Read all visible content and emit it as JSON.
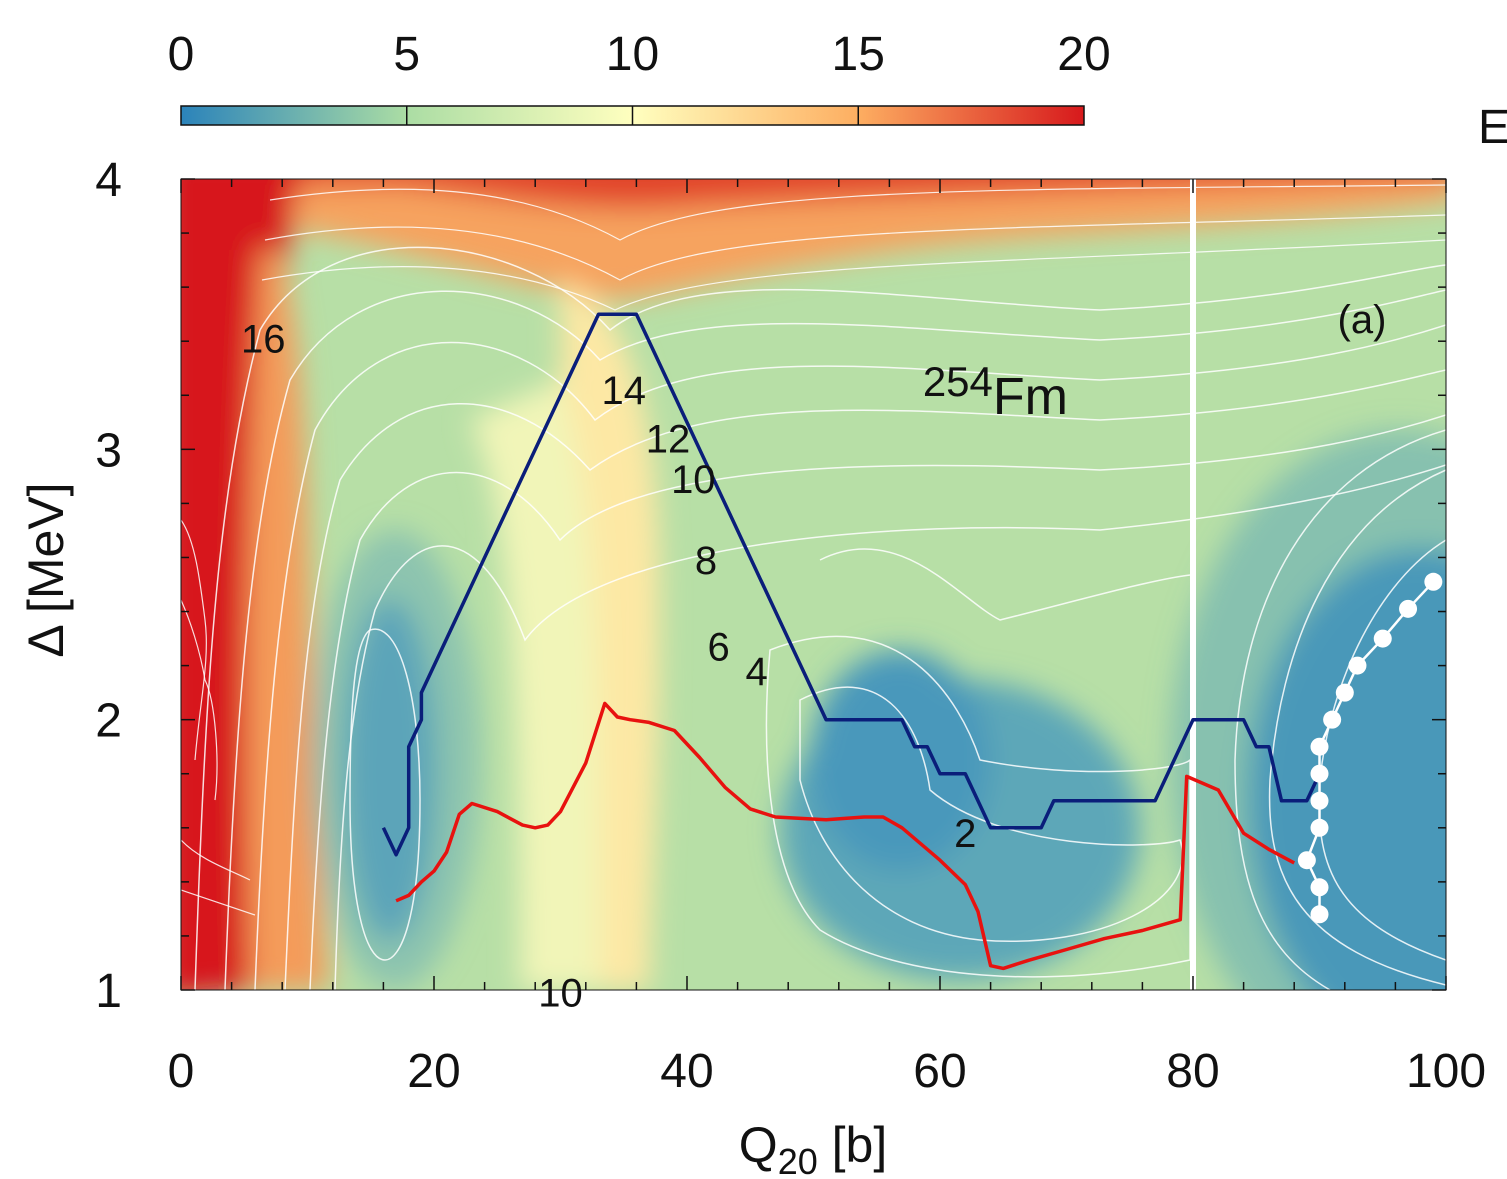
{
  "chart_data": {
    "type": "heatmap",
    "nucleus_label": {
      "mass": "254",
      "element": "Fm"
    },
    "panel_label": "(a)",
    "xlabel": {
      "main": "Q",
      "sub": "20",
      "unit": " [b]"
    },
    "ylabel": "Δ [MeV]",
    "xlim": [
      0,
      100
    ],
    "ylim": [
      1,
      4
    ],
    "xticks": [
      0,
      20,
      40,
      60,
      80,
      100
    ],
    "yticks": [
      1,
      2,
      3,
      4
    ],
    "colorbar": {
      "label": "E",
      "range": [
        0,
        20
      ],
      "ticks": [
        0,
        5,
        10,
        15,
        20
      ],
      "colors": [
        "#2b83ba",
        "#abdda4",
        "#ffffbf",
        "#fdae61",
        "#d7191c"
      ]
    },
    "contour_labels": [
      {
        "text": "16",
        "x": 6.5,
        "y": 3.41
      },
      {
        "text": "14",
        "x": 35,
        "y": 3.22
      },
      {
        "text": "12",
        "x": 38.5,
        "y": 3.04
      },
      {
        "text": "10",
        "x": 40.5,
        "y": 2.89
      },
      {
        "text": "8",
        "x": 41.5,
        "y": 2.59
      },
      {
        "text": "6",
        "x": 42.5,
        "y": 2.27
      },
      {
        "text": "4",
        "x": 45.5,
        "y": 2.18
      },
      {
        "text": "2",
        "x": 62,
        "y": 1.58
      },
      {
        "text": "10",
        "x": 30,
        "y": 0.99
      }
    ],
    "series": [
      {
        "name": "blue path",
        "color": "#0a1e7a",
        "points": [
          [
            16,
            1.6
          ],
          [
            17,
            1.5
          ],
          [
            18,
            1.6
          ],
          [
            18,
            1.9
          ],
          [
            19,
            2.0
          ],
          [
            19,
            2.1
          ],
          [
            33,
            3.5
          ],
          [
            36,
            3.5
          ],
          [
            51,
            2.0
          ],
          [
            57,
            2.0
          ],
          [
            58,
            1.9
          ],
          [
            59,
            1.9
          ],
          [
            60,
            1.8
          ],
          [
            62,
            1.8
          ],
          [
            64,
            1.6
          ],
          [
            68,
            1.6
          ],
          [
            69,
            1.7
          ],
          [
            77,
            1.7
          ],
          [
            80,
            2.0
          ],
          [
            84,
            2.0
          ],
          [
            85,
            1.9
          ],
          [
            86,
            1.9
          ],
          [
            87,
            1.7
          ],
          [
            89,
            1.7
          ],
          [
            90,
            1.8
          ]
        ]
      },
      {
        "name": "red path",
        "color": "#e8120f",
        "points": [
          [
            17,
            1.33
          ],
          [
            18,
            1.35
          ],
          [
            19,
            1.4
          ],
          [
            20,
            1.44
          ],
          [
            21,
            1.51
          ],
          [
            22,
            1.65
          ],
          [
            23,
            1.69
          ],
          [
            25,
            1.66
          ],
          [
            27,
            1.61
          ],
          [
            28,
            1.6
          ],
          [
            29,
            1.61
          ],
          [
            30,
            1.66
          ],
          [
            32,
            1.84
          ],
          [
            33.5,
            2.06
          ],
          [
            34.5,
            2.01
          ],
          [
            35.5,
            2.0
          ],
          [
            37,
            1.99
          ],
          [
            39,
            1.96
          ],
          [
            41,
            1.86
          ],
          [
            43,
            1.75
          ],
          [
            45,
            1.67
          ],
          [
            47,
            1.64
          ],
          [
            51,
            1.63
          ],
          [
            54,
            1.64
          ],
          [
            55.5,
            1.64
          ],
          [
            57,
            1.6
          ],
          [
            60,
            1.48
          ],
          [
            62,
            1.39
          ],
          [
            63,
            1.29
          ],
          [
            64,
            1.09
          ],
          [
            65,
            1.08
          ],
          [
            67,
            1.11
          ],
          [
            70,
            1.15
          ],
          [
            73,
            1.19
          ],
          [
            76,
            1.22
          ],
          [
            79,
            1.26
          ],
          [
            79.5,
            1.79
          ],
          [
            82,
            1.74
          ],
          [
            84,
            1.58
          ],
          [
            86,
            1.52
          ],
          [
            88,
            1.47
          ]
        ]
      },
      {
        "name": "white dots",
        "color": "#ffffff",
        "points": [
          [
            90,
            1.28
          ],
          [
            90,
            1.38
          ],
          [
            89,
            1.48
          ],
          [
            90,
            1.6
          ],
          [
            90,
            1.7
          ],
          [
            90,
            1.8
          ],
          [
            90,
            1.9
          ],
          [
            91,
            2.0
          ],
          [
            92,
            2.1
          ],
          [
            93,
            2.2
          ],
          [
            95,
            2.3
          ],
          [
            97,
            2.41
          ],
          [
            99,
            2.51
          ]
        ]
      }
    ]
  }
}
